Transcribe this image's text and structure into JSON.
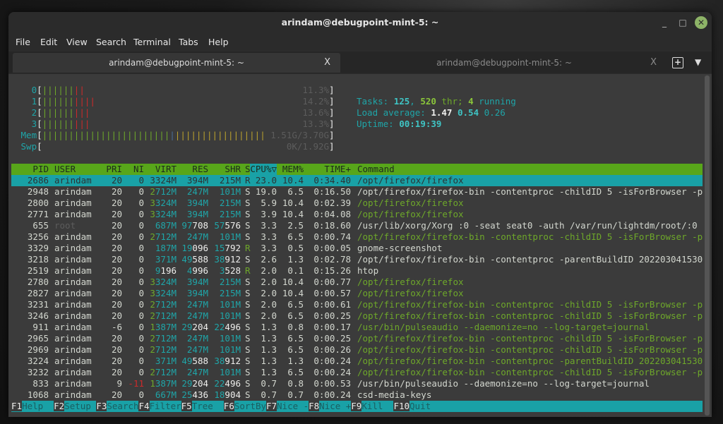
{
  "window": {
    "title": "arindam@debugpoint-mint-5: ~",
    "minimize": "_",
    "maximize": "□",
    "close": "✕"
  },
  "menu": [
    "File",
    "Edit",
    "View",
    "Search",
    "Terminal",
    "Tabs",
    "Help"
  ],
  "tabs": [
    {
      "label": "arindam@debugpoint-mint-5: ~",
      "close": "X",
      "active": true
    },
    {
      "label": "arindam@debugpoint-mint-5: ~",
      "close": "X",
      "active": false
    }
  ],
  "new_tab_icon": "+",
  "tab_menu_icon": "▼",
  "meters": {
    "cpus": [
      {
        "label": "0",
        "value": "11.3%"
      },
      {
        "label": "1",
        "value": "14.2%"
      },
      {
        "label": "2",
        "value": "13.6%"
      },
      {
        "label": "3",
        "value": "13.3%"
      }
    ],
    "mem": {
      "label": "Mem",
      "value": "1.51G/3.70G"
    },
    "swp": {
      "label": "Swp",
      "value": "0K/1.92G"
    }
  },
  "summary": {
    "tasks_label": "Tasks: ",
    "tasks": "125",
    "sep": ", ",
    "threads": "520",
    "thr_label": " thr; ",
    "running": "4",
    "running_label": " running",
    "load_label": "Load average: ",
    "load1": "1.47",
    "load5": "0.54",
    "load15": "0.26",
    "uptime_label": "Uptime: ",
    "uptime": "00:19:39"
  },
  "columns": [
    "PID",
    "USER",
    "PRI",
    "NI",
    "VIRT",
    "RES",
    "SHR",
    "S",
    "CPU%▽",
    "MEM%",
    "TIME+",
    "Command"
  ],
  "processes": [
    {
      "pid": "2686",
      "user": "arindam",
      "pri": "20",
      "ni": "0",
      "virt": "3324M",
      "res": "394M",
      "shr": "215M",
      "s": "R",
      "cpu": "23.0",
      "mem": "10.4",
      "time": "0:34.40",
      "cmd": "/opt/firefox/firefox",
      "thread": false,
      "selected": true
    },
    {
      "pid": "2948",
      "user": "arindam",
      "pri": "20",
      "ni": "0",
      "virt": "2712M",
      "res": "247M",
      "shr": "101M",
      "s": "S",
      "cpu": "19.0",
      "mem": "6.5",
      "time": "0:16.50",
      "cmd": "/opt/firefox/firefox-bin -contentproc -childID 5 -isForBrowser -p",
      "thread": false
    },
    {
      "pid": "2800",
      "user": "arindam",
      "pri": "20",
      "ni": "0",
      "virt": "3324M",
      "res": "394M",
      "shr": "215M",
      "s": "S",
      "cpu": "5.9",
      "mem": "10.4",
      "time": "0:02.39",
      "cmd": "/opt/firefox/firefox",
      "thread": true
    },
    {
      "pid": "2771",
      "user": "arindam",
      "pri": "20",
      "ni": "0",
      "virt": "3324M",
      "res": "394M",
      "shr": "215M",
      "s": "S",
      "cpu": "3.9",
      "mem": "10.4",
      "time": "0:04.08",
      "cmd": "/opt/firefox/firefox",
      "thread": true
    },
    {
      "pid": "655",
      "user": "root",
      "pri": "20",
      "ni": "0",
      "virt": "687M",
      "res": "97708",
      "shr": "57576",
      "s": "S",
      "cpu": "3.3",
      "mem": "2.5",
      "time": "0:18.60",
      "cmd": "/usr/lib/xorg/Xorg :0 -seat seat0 -auth /var/run/lightdm/root/:0",
      "thread": false
    },
    {
      "pid": "3256",
      "user": "arindam",
      "pri": "20",
      "ni": "0",
      "virt": "2712M",
      "res": "247M",
      "shr": "101M",
      "s": "S",
      "cpu": "3.3",
      "mem": "6.5",
      "time": "0:00.74",
      "cmd": "/opt/firefox/firefox-bin -contentproc -childID 5 -isForBrowser -p",
      "thread": true
    },
    {
      "pid": "3329",
      "user": "arindam",
      "pri": "20",
      "ni": "0",
      "virt": "187M",
      "res": "19096",
      "shr": "15792",
      "s": "R",
      "cpu": "3.3",
      "mem": "0.5",
      "time": "0:00.05",
      "cmd": "gnome-screenshot",
      "thread": false
    },
    {
      "pid": "3218",
      "user": "arindam",
      "pri": "20",
      "ni": "0",
      "virt": "371M",
      "res": "49588",
      "shr": "38912",
      "s": "S",
      "cpu": "2.6",
      "mem": "1.3",
      "time": "0:02.78",
      "cmd": "/opt/firefox/firefox-bin -contentproc -parentBuildID 202203041530",
      "thread": false
    },
    {
      "pid": "2519",
      "user": "arindam",
      "pri": "20",
      "ni": "0",
      "virt": "9196",
      "res": "4996",
      "shr": "3528",
      "s": "R",
      "cpu": "2.0",
      "mem": "0.1",
      "time": "0:15.26",
      "cmd": "htop",
      "thread": false
    },
    {
      "pid": "2780",
      "user": "arindam",
      "pri": "20",
      "ni": "0",
      "virt": "3324M",
      "res": "394M",
      "shr": "215M",
      "s": "S",
      "cpu": "2.0",
      "mem": "10.4",
      "time": "0:00.77",
      "cmd": "/opt/firefox/firefox",
      "thread": true
    },
    {
      "pid": "2827",
      "user": "arindam",
      "pri": "20",
      "ni": "0",
      "virt": "3324M",
      "res": "394M",
      "shr": "215M",
      "s": "S",
      "cpu": "2.0",
      "mem": "10.4",
      "time": "0:00.57",
      "cmd": "/opt/firefox/firefox",
      "thread": true
    },
    {
      "pid": "3231",
      "user": "arindam",
      "pri": "20",
      "ni": "0",
      "virt": "2712M",
      "res": "247M",
      "shr": "101M",
      "s": "S",
      "cpu": "2.0",
      "mem": "6.5",
      "time": "0:00.61",
      "cmd": "/opt/firefox/firefox-bin -contentproc -childID 5 -isForBrowser -p",
      "thread": true
    },
    {
      "pid": "3246",
      "user": "arindam",
      "pri": "20",
      "ni": "0",
      "virt": "2712M",
      "res": "247M",
      "shr": "101M",
      "s": "S",
      "cpu": "2.0",
      "mem": "6.5",
      "time": "0:00.25",
      "cmd": "/opt/firefox/firefox-bin -contentproc -childID 5 -isForBrowser -p",
      "thread": true
    },
    {
      "pid": "911",
      "user": "arindam",
      "pri": "-6",
      "ni": "0",
      "virt": "1387M",
      "res": "29204",
      "shr": "22496",
      "s": "S",
      "cpu": "1.3",
      "mem": "0.8",
      "time": "0:00.17",
      "cmd": "/usr/bin/pulseaudio --daemonize=no --log-target=journal",
      "thread": true
    },
    {
      "pid": "2965",
      "user": "arindam",
      "pri": "20",
      "ni": "0",
      "virt": "2712M",
      "res": "247M",
      "shr": "101M",
      "s": "S",
      "cpu": "1.3",
      "mem": "6.5",
      "time": "0:00.25",
      "cmd": "/opt/firefox/firefox-bin -contentproc -childID 5 -isForBrowser -p",
      "thread": true
    },
    {
      "pid": "2969",
      "user": "arindam",
      "pri": "20",
      "ni": "0",
      "virt": "2712M",
      "res": "247M",
      "shr": "101M",
      "s": "S",
      "cpu": "1.3",
      "mem": "6.5",
      "time": "0:00.26",
      "cmd": "/opt/firefox/firefox-bin -contentproc -childID 5 -isForBrowser -p",
      "thread": true
    },
    {
      "pid": "3224",
      "user": "arindam",
      "pri": "20",
      "ni": "0",
      "virt": "371M",
      "res": "49588",
      "shr": "38912",
      "s": "S",
      "cpu": "1.3",
      "mem": "1.3",
      "time": "0:00.24",
      "cmd": "/opt/firefox/firefox-bin -contentproc -parentBuildID 202203041530",
      "thread": true
    },
    {
      "pid": "3232",
      "user": "arindam",
      "pri": "20",
      "ni": "0",
      "virt": "2712M",
      "res": "247M",
      "shr": "101M",
      "s": "S",
      "cpu": "1.3",
      "mem": "6.5",
      "time": "0:00.24",
      "cmd": "/opt/firefox/firefox-bin -contentproc -childID 5 -isForBrowser -p",
      "thread": true
    },
    {
      "pid": "833",
      "user": "arindam",
      "pri": "9",
      "ni": "-11",
      "virt": "1387M",
      "res": "29204",
      "shr": "22496",
      "s": "S",
      "cpu": "0.7",
      "mem": "0.8",
      "time": "0:00.53",
      "cmd": "/usr/bin/pulseaudio --daemonize=no --log-target=journal",
      "thread": false
    },
    {
      "pid": "1068",
      "user": "arindam",
      "pri": "20",
      "ni": "0",
      "virt": "667M",
      "res": "25436",
      "shr": "18904",
      "s": "S",
      "cpu": "0.7",
      "mem": "0.7",
      "time": "0:00.24",
      "cmd": "csd-media-keys",
      "thread": false
    }
  ],
  "footer": [
    {
      "key": "F1",
      "label": "Help  "
    },
    {
      "key": "F2",
      "label": "Setup "
    },
    {
      "key": "F3",
      "label": "Search"
    },
    {
      "key": "F4",
      "label": "Filter"
    },
    {
      "key": "F5",
      "label": "Tree  "
    },
    {
      "key": "F6",
      "label": "SortBy"
    },
    {
      "key": "F7",
      "label": "Nice -"
    },
    {
      "key": "F8",
      "label": "Nice +"
    },
    {
      "key": "F9",
      "label": "Kill  "
    },
    {
      "key": "F10",
      "label": "Quit"
    }
  ],
  "colors": {
    "header_bar": "#58a61a",
    "selection": "#19a1a6",
    "terminal_bg": "#3b3b3b",
    "thread_text": "#6ea82a"
  }
}
